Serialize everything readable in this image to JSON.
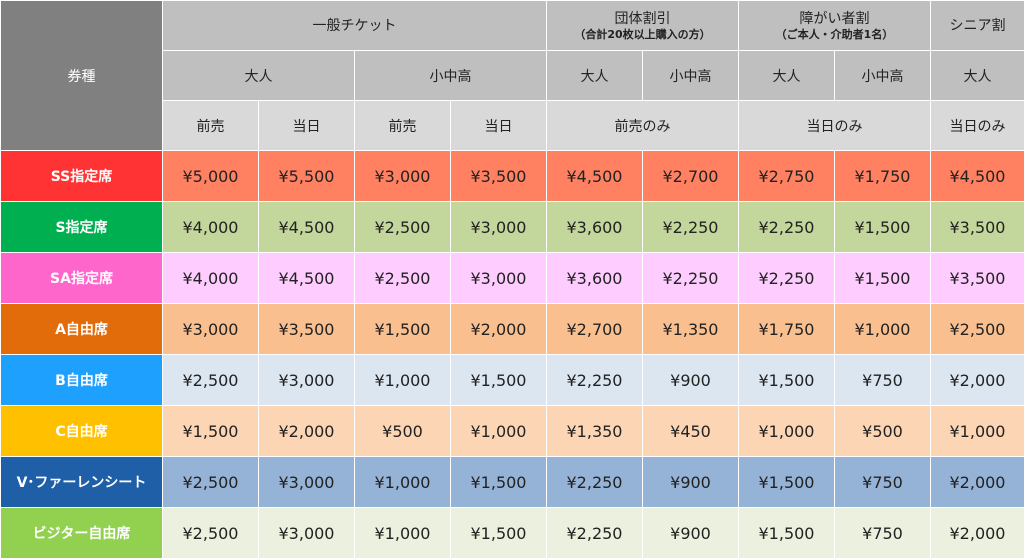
{
  "corner_label": "券種",
  "groups": [
    {
      "label": "一般チケット",
      "sub": ""
    },
    {
      "label": "団体割引",
      "sub": "（合計20枚以上購入の方）"
    },
    {
      "label": "障がい者割",
      "sub": "（ご本人・介助者1名）"
    },
    {
      "label": "シニア割",
      "sub": ""
    }
  ],
  "sub_groups": [
    "大人",
    "小中高",
    "大人",
    "小中高",
    "大人",
    "小中高",
    "大人"
  ],
  "sale_types": [
    "前売",
    "当日",
    "前売",
    "当日",
    "前売のみ",
    "当日のみ",
    "当日のみ"
  ],
  "rows": [
    {
      "label": "SS指定席",
      "label_color": "#ff3333",
      "cell_color": "#ff8161",
      "prices": [
        "¥5,000",
        "¥5,500",
        "¥3,000",
        "¥3,500",
        "¥4,500",
        "¥2,700",
        "¥2,750",
        "¥1,750",
        "¥4,500"
      ]
    },
    {
      "label": "S指定席",
      "label_color": "#00b050",
      "cell_color": "#c3d69b",
      "prices": [
        "¥4,000",
        "¥4,500",
        "¥2,500",
        "¥3,000",
        "¥3,600",
        "¥2,250",
        "¥2,250",
        "¥1,500",
        "¥3,500"
      ]
    },
    {
      "label": "SA指定席",
      "label_color": "#ff66cc",
      "cell_color": "#ffccff",
      "prices": [
        "¥4,000",
        "¥4,500",
        "¥2,500",
        "¥3,000",
        "¥3,600",
        "¥2,250",
        "¥2,250",
        "¥1,500",
        "¥3,500"
      ]
    },
    {
      "label": "A自由席",
      "label_color": "#e36c0a",
      "cell_color": "#fabf8f",
      "prices": [
        "¥3,000",
        "¥3,500",
        "¥1,500",
        "¥2,000",
        "¥2,700",
        "¥1,350",
        "¥1,750",
        "¥1,000",
        "¥2,500"
      ]
    },
    {
      "label": "B自由席",
      "label_color": "#1ea0ff",
      "cell_color": "#dce6f1",
      "prices": [
        "¥2,500",
        "¥3,000",
        "¥1,000",
        "¥1,500",
        "¥2,250",
        "¥900",
        "¥1,500",
        "¥750",
        "¥2,000"
      ]
    },
    {
      "label": "C自由席",
      "label_color": "#ffc000",
      "cell_color": "#fcd5b4",
      "prices": [
        "¥1,500",
        "¥2,000",
        "¥500",
        "¥1,000",
        "¥1,350",
        "¥450",
        "¥1,000",
        "¥500",
        "¥1,000"
      ]
    },
    {
      "label": "V･ファーレンシート",
      "label_color": "#1f5fa8",
      "cell_color": "#95b3d7",
      "prices": [
        "¥2,500",
        "¥3,000",
        "¥1,000",
        "¥1,500",
        "¥2,250",
        "¥900",
        "¥1,500",
        "¥750",
        "¥2,000"
      ]
    },
    {
      "label": "ビジター自由席",
      "label_color": "#92d050",
      "cell_color": "#ebf1de",
      "prices": [
        "¥2,500",
        "¥3,000",
        "¥1,000",
        "¥1,500",
        "¥2,250",
        "¥900",
        "¥1,500",
        "¥750",
        "¥2,000"
      ]
    }
  ]
}
